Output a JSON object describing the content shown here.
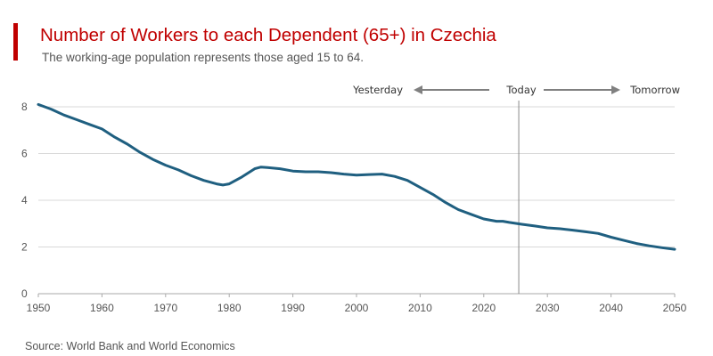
{
  "header": {
    "title": "Number of Workers to each Dependent (65+) in Czechia",
    "subtitle": "The working-age population represents those aged 15 to 64."
  },
  "footer": {
    "source": "Source: World Bank and World Economics"
  },
  "colors": {
    "accent": "#c00000",
    "line": "#1f5f80",
    "grid": "#d9d9d9",
    "today_line": "#888888",
    "arrow": "#808080"
  },
  "chart_data": {
    "type": "line",
    "title": "Number of Workers to each Dependent (65+) in Czechia",
    "subtitle": "The working-age population represents those aged 15 to 64.",
    "xlabel": "",
    "ylabel": "",
    "xlim": [
      1950,
      2050
    ],
    "ylim": [
      0,
      8
    ],
    "x_ticks": [
      1950,
      1960,
      1970,
      1980,
      1990,
      2000,
      2010,
      2020,
      2030,
      2040,
      2050
    ],
    "y_ticks": [
      0,
      2,
      4,
      6,
      8
    ],
    "grid": "horizontal",
    "annotations": {
      "today_year": 2025.5,
      "yesterday": "Yesterday",
      "today": "Today",
      "tomorrow": "Tomorrow"
    },
    "x": [
      1950,
      1952,
      1954,
      1956,
      1958,
      1960,
      1962,
      1964,
      1966,
      1968,
      1970,
      1972,
      1974,
      1976,
      1978,
      1979,
      1980,
      1982,
      1984,
      1985,
      1986,
      1988,
      1990,
      1992,
      1994,
      1996,
      1998,
      2000,
      2002,
      2004,
      2006,
      2008,
      2010,
      2012,
      2014,
      2016,
      2018,
      2020,
      2022,
      2023,
      2024,
      2026,
      2028,
      2030,
      2032,
      2034,
      2036,
      2038,
      2040,
      2042,
      2044,
      2046,
      2048,
      2050
    ],
    "series": [
      {
        "values": [
          8.1,
          7.9,
          7.65,
          7.45,
          7.25,
          7.05,
          6.7,
          6.4,
          6.05,
          5.75,
          5.5,
          5.3,
          5.05,
          4.85,
          4.7,
          4.65,
          4.7,
          5.0,
          5.35,
          5.42,
          5.4,
          5.35,
          5.25,
          5.22,
          5.22,
          5.18,
          5.12,
          5.08,
          5.1,
          5.12,
          5.02,
          4.85,
          4.55,
          4.25,
          3.9,
          3.6,
          3.4,
          3.2,
          3.1,
          3.1,
          3.05,
          2.97,
          2.9,
          2.82,
          2.78,
          2.72,
          2.65,
          2.58,
          2.42,
          2.28,
          2.15,
          2.05,
          1.97,
          1.9
        ]
      }
    ]
  }
}
